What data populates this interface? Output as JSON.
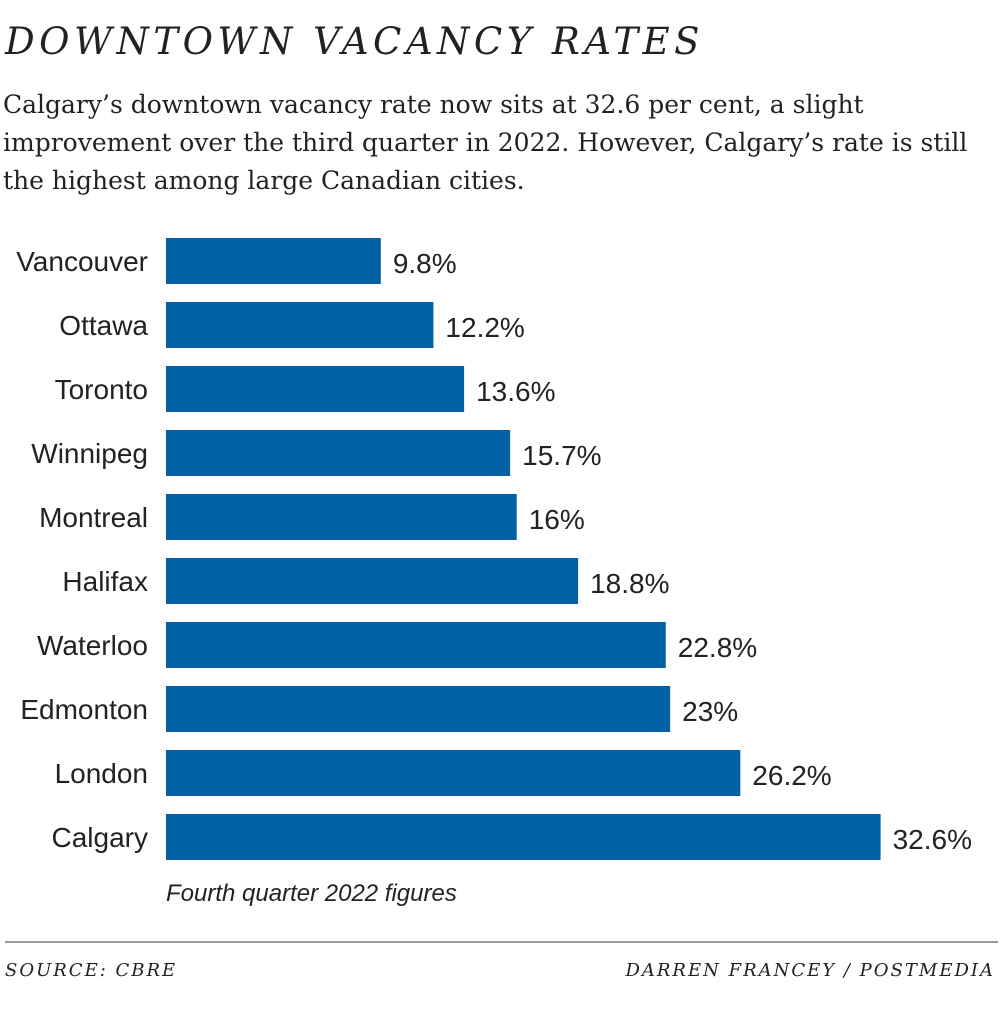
{
  "title": "DOWNTOWN VACANCY RATES",
  "subtitle": "Calgary’s downtown vacancy rate now sits at 32.6 per cent, a slight improvement over the third quarter in 2022. However, Calgary’s rate is still the highest among large Canadian cities.",
  "note": "Fourth quarter 2022 figures",
  "source": "SOURCE: CBRE",
  "credit": "DARREN FRANCEY / POSTMEDIA",
  "chart_data": {
    "type": "bar",
    "orientation": "horizontal",
    "categories": [
      "Vancouver",
      "Ottawa",
      "Toronto",
      "Winnipeg",
      "Montreal",
      "Halifax",
      "Waterloo",
      "Edmonton",
      "London",
      "Calgary"
    ],
    "values": [
      9.8,
      12.2,
      13.6,
      15.7,
      16,
      18.8,
      22.8,
      23,
      26.2,
      32.6
    ],
    "data_labels": [
      "9.8%",
      "12.2%",
      "13.6%",
      "15.7%",
      "16%",
      "18.8%",
      "22.8%",
      "23%",
      "26.2%",
      "32.6%"
    ],
    "unit": "%",
    "grid": false,
    "bar_color": "#0062a4"
  }
}
